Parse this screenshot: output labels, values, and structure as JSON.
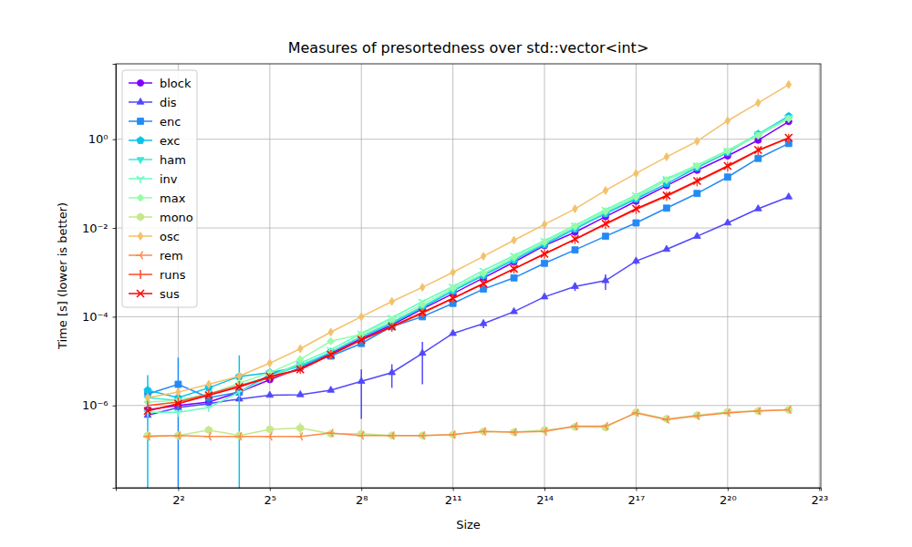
{
  "chart_data": {
    "type": "line",
    "title": "Measures of presortedness over std::vector<int>",
    "x_label": "Size",
    "y_label": "Time [s] (lower is better)",
    "log": true,
    "grid": true,
    "legend": "upper left",
    "x": [
      2,
      4,
      8,
      16,
      32,
      64,
      128,
      256,
      512,
      1024,
      2048,
      4096,
      8192,
      16384,
      32768,
      65536,
      131072,
      262144,
      524288,
      1048576,
      2097152,
      4194304
    ],
    "xlim": [
      0.97,
      8700000
    ],
    "xticks": [
      {
        "value": 4,
        "label": "2²"
      },
      {
        "value": 32,
        "label": "2⁵"
      },
      {
        "value": 256,
        "label": "2⁸"
      },
      {
        "value": 2048,
        "label": "2¹¹"
      },
      {
        "value": 16384,
        "label": "2¹⁴"
      },
      {
        "value": 131072,
        "label": "2¹⁷"
      },
      {
        "value": 1048576,
        "label": "2²⁰"
      },
      {
        "value": 8388608,
        "label": "2²³"
      }
    ],
    "ylim": [
      1.4e-08,
      50
    ],
    "yticks": [
      {
        "value": 1e-06,
        "label": "10⁻⁶"
      },
      {
        "value": 0.0001,
        "label": "10⁻⁴"
      },
      {
        "value": 0.01,
        "label": "10⁻²"
      },
      {
        "value": 1,
        "label": "10⁰"
      }
    ],
    "series": [
      {
        "name": "block",
        "color": "#8000ff",
        "marker": "circle",
        "values": [
          8e-07,
          1e-06,
          1.2e-06,
          2e-06,
          3.8e-06,
          7e-06,
          1.5e-05,
          3.2e-05,
          6.5e-05,
          0.00015,
          0.00033,
          0.00075,
          0.0017,
          0.004,
          0.008,
          0.018,
          0.04,
          0.09,
          0.2,
          0.42,
          0.95,
          2.5
        ],
        "errors": [
          0,
          0,
          0,
          0,
          0,
          0,
          0,
          0,
          0,
          0,
          0,
          0,
          0,
          0,
          0,
          0,
          0,
          0,
          0,
          0,
          0,
          0
        ]
      },
      {
        "name": "dis",
        "color": "#5148fc",
        "marker": "triangle-up",
        "values": [
          6e-07,
          9e-07,
          1.1e-06,
          1.4e-06,
          1.7e-06,
          1.75e-06,
          2.2e-06,
          3.5e-06,
          5.5e-06,
          1.5e-05,
          4.2e-05,
          7e-05,
          0.00013,
          0.00028,
          0.00048,
          0.00065,
          0.0018,
          0.0033,
          0.0065,
          0.013,
          0.027,
          0.05
        ],
        "errors": [
          0,
          0,
          0,
          0,
          0,
          0,
          0,
          3e-06,
          3e-06,
          1.2e-05,
          0,
          1.5e-05,
          0,
          0,
          0.0001,
          0.00025,
          0.0003,
          0,
          0,
          0,
          0,
          0
        ]
      },
      {
        "name": "enc",
        "color": "#238af5",
        "marker": "square",
        "values": [
          1.8e-06,
          3e-06,
          1.5e-06,
          2e-06,
          5e-06,
          8e-06,
          1.3e-05,
          2.5e-05,
          6e-05,
          0.0001,
          0.0002,
          0.00042,
          0.00075,
          0.0016,
          0.0032,
          0.0065,
          0.013,
          0.028,
          0.06,
          0.14,
          0.37,
          0.8
        ],
        "errors": [
          0,
          9e-06,
          0,
          0,
          0,
          0,
          0,
          0,
          0,
          0,
          0,
          0,
          0,
          0,
          0,
          0,
          0,
          0,
          0,
          0,
          0,
          0
        ]
      },
      {
        "name": "exc",
        "color": "#0bc1e8",
        "marker": "pentagon",
        "values": [
          2.2e-06,
          1.5e-06,
          2.5e-06,
          4.5e-06,
          5.5e-06,
          7.5e-06,
          1.6e-05,
          3.5e-05,
          7e-05,
          0.00016,
          0.00038,
          0.00085,
          0.0019,
          0.0042,
          0.0095,
          0.021,
          0.045,
          0.1,
          0.23,
          0.5,
          1.3,
          3.3
        ],
        "errors": [
          2.6e-06,
          0,
          0,
          9e-06,
          0,
          0,
          0,
          0,
          0,
          0,
          0,
          0,
          0,
          0,
          0,
          0,
          0,
          0,
          0,
          0,
          0,
          0
        ]
      },
      {
        "name": "ham",
        "color": "#3ae8d6",
        "marker": "triangle-down",
        "values": [
          1.5e-06,
          1.3e-06,
          1.8e-06,
          2.8e-06,
          4.5e-06,
          8e-06,
          1.6e-05,
          3.6e-05,
          7.5e-05,
          0.00017,
          0.0004,
          0.0009,
          0.002,
          0.0045,
          0.01,
          0.022,
          0.048,
          0.12,
          0.24,
          0.52,
          1.3,
          3.1
        ],
        "errors": [
          0,
          0,
          0,
          0,
          0,
          0,
          0,
          0,
          0,
          0,
          0,
          0,
          0,
          0,
          0,
          0,
          0,
          0,
          0,
          0,
          0,
          0
        ]
      },
      {
        "name": "inv",
        "color": "#68fcc1",
        "marker": "tri-down",
        "values": [
          7e-07,
          7e-07,
          9e-07,
          2e-06,
          4.5e-06,
          9e-06,
          1.8e-05,
          4.2e-05,
          9.5e-05,
          0.00022,
          0.00048,
          0.0011,
          0.0024,
          0.0052,
          0.0115,
          0.026,
          0.055,
          0.13,
          0.26,
          0.56,
          1.3,
          3.0
        ],
        "errors": [
          0,
          0,
          0,
          0,
          0,
          0,
          0,
          0,
          0,
          0,
          0,
          0,
          0,
          0,
          0,
          0,
          0,
          0,
          0,
          0,
          0,
          0
        ]
      },
      {
        "name": "max",
        "color": "#97fca7",
        "marker": "diamond",
        "values": [
          1.2e-06,
          1.3e-06,
          1.8e-06,
          3.2e-06,
          5.5e-06,
          1.1e-05,
          2.8e-05,
          4e-05,
          8.5e-05,
          0.00019,
          0.00044,
          0.00095,
          0.0022,
          0.0048,
          0.011,
          0.024,
          0.05,
          0.12,
          0.25,
          0.54,
          1.2,
          2.9
        ],
        "errors": [
          0,
          0,
          0,
          0,
          0,
          0,
          0,
          0,
          0,
          0,
          0,
          0,
          0,
          0,
          0,
          0,
          0,
          0,
          0,
          0,
          0,
          0
        ]
      },
      {
        "name": "mono",
        "color": "#c5e88a",
        "marker": "hexagon",
        "values": [
          2.1e-07,
          2.1e-07,
          2.8e-07,
          2.1e-07,
          2.9e-07,
          3.1e-07,
          2.3e-07,
          2.3e-07,
          2.1e-07,
          2.1e-07,
          2.2e-07,
          2.6e-07,
          2.5e-07,
          2.8e-07,
          3.3e-07,
          3.2e-07,
          7e-07,
          5e-07,
          6e-07,
          7.2e-07,
          7.5e-07,
          8e-07
        ],
        "errors": [
          0,
          0,
          0,
          0,
          0,
          1e-07,
          0,
          0,
          0,
          0,
          0,
          0,
          0,
          0,
          0,
          0,
          0,
          0,
          0,
          0,
          0,
          0
        ]
      },
      {
        "name": "osc",
        "color": "#f3c16a",
        "marker": "thin-diamond",
        "values": [
          1.5e-06,
          2e-06,
          3e-06,
          4.6e-06,
          9e-06,
          1.9e-05,
          4.5e-05,
          0.0001,
          0.00022,
          0.00046,
          0.001,
          0.0023,
          0.0053,
          0.012,
          0.027,
          0.07,
          0.17,
          0.4,
          0.9,
          2.6,
          6.6,
          17
        ],
        "errors": [
          0,
          0,
          0,
          0,
          0,
          0,
          0,
          0,
          0,
          0,
          0,
          0,
          0,
          0,
          0,
          0,
          0,
          0,
          0,
          0,
          0,
          0
        ]
      },
      {
        "name": "rem",
        "color": "#ff8a48",
        "marker": "tri-left",
        "values": [
          2e-07,
          2.1e-07,
          2e-07,
          2e-07,
          2e-07,
          2e-07,
          2.4e-07,
          2.1e-07,
          2.1e-07,
          2.1e-07,
          2.2e-07,
          2.6e-07,
          2.5e-07,
          2.6e-07,
          3.4e-07,
          3.4e-07,
          6.8e-07,
          4.8e-07,
          5.8e-07,
          6.8e-07,
          7.5e-07,
          8e-07
        ],
        "errors": [
          0,
          0,
          0,
          0,
          0,
          0,
          0,
          0,
          0,
          0,
          0,
          0,
          0,
          0,
          0,
          0,
          0,
          0,
          0,
          0,
          0,
          0
        ]
      },
      {
        "name": "runs",
        "color": "#ff4824",
        "marker": "vline",
        "values": [
          1e-06,
          1.2e-06,
          1.8e-06,
          2.8e-06,
          4.2e-06,
          6.5e-06,
          1.4e-05,
          3e-05,
          5.8e-05,
          0.00012,
          0.00026,
          0.00055,
          0.0012,
          0.0026,
          0.0055,
          0.012,
          0.026,
          0.052,
          0.11,
          0.24,
          0.55,
          1.05
        ],
        "errors": [
          0,
          0,
          0,
          0,
          0,
          0,
          0,
          0,
          0,
          0,
          0,
          0,
          0,
          0,
          0,
          0,
          0,
          0,
          0,
          0,
          0,
          0
        ]
      },
      {
        "name": "sus",
        "color": "#ff0000",
        "marker": "x",
        "values": [
          7.5e-07,
          1.1e-06,
          1.7e-06,
          2.6e-06,
          4.5e-06,
          6.5e-06,
          1.4e-05,
          3e-05,
          6e-05,
          0.000125,
          0.00026,
          0.00056,
          0.0012,
          0.0026,
          0.0056,
          0.0125,
          0.027,
          0.054,
          0.115,
          0.25,
          0.57,
          1.08
        ],
        "errors": [
          0,
          0,
          0,
          0,
          0,
          0,
          0,
          0,
          0,
          0,
          0,
          0,
          0,
          0,
          0,
          0,
          0,
          0,
          0,
          0,
          0,
          0
        ]
      }
    ]
  }
}
